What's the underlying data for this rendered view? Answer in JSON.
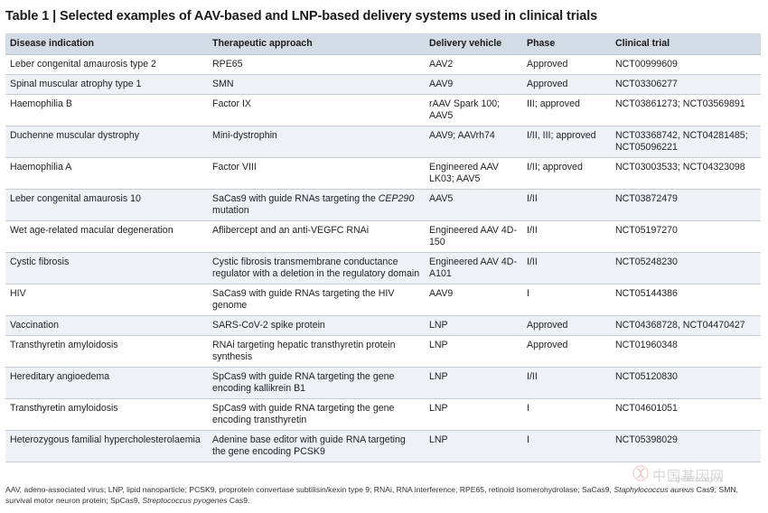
{
  "title": "Table 1 | Selected examples of AAV-based and LNP-based delivery systems used in clinical trials",
  "headers": [
    "Disease indication",
    "Therapeutic approach",
    "Delivery vehicle",
    "Phase",
    "Clinical trial"
  ],
  "rows": [
    {
      "disease": "Leber congenital amaurosis type 2",
      "approach": "RPE65",
      "vehicle": "AAV2",
      "phase": "Approved",
      "trial": "NCT00999609"
    },
    {
      "disease": "Spinal muscular atrophy type 1",
      "approach": "SMN",
      "vehicle": "AAV9",
      "phase": "Approved",
      "trial": "NCT03306277"
    },
    {
      "disease": "Haemophilia B",
      "approach": "Factor IX",
      "vehicle": "rAAV Spark 100; AAV5",
      "phase": "III; approved",
      "trial": "NCT03861273; NCT03569891"
    },
    {
      "disease": "Duchenne muscular dystrophy",
      "approach": "Mini-dystrophin",
      "vehicle": "AAV9; AAVrh74",
      "phase": "I/II, III; approved",
      "trial": "NCT03368742, NCT04281485; NCT05096221"
    },
    {
      "disease": "Haemophilia A",
      "approach": "Factor VIII",
      "vehicle": "Engineered AAV LK03; AAV5",
      "phase": "I/II; approved",
      "trial": "NCT03003533; NCT04323098"
    },
    {
      "disease": "Leber congenital amaurosis 10",
      "approach": "SaCas9 with guide RNAs targeting the",
      "approach_italic": "CEP290",
      "approach_suffix": " mutation",
      "vehicle": "AAV5",
      "phase": "I/II",
      "trial": "NCT03872479"
    },
    {
      "disease": "Wet age-related macular degeneration",
      "approach": "Aflibercept and an anti-VEGFC RNAi",
      "vehicle": "Engineered AAV 4D-150",
      "phase": "I/II",
      "trial": "NCT05197270"
    },
    {
      "disease": "Cystic fibrosis",
      "approach": "Cystic fibrosis transmembrane conductance regulator with a deletion in the regulatory domain",
      "vehicle": "Engineered AAV 4D-A101",
      "phase": "I/II",
      "trial": "NCT05248230"
    },
    {
      "disease": "HIV",
      "approach": "SaCas9 with guide RNAs targeting the HIV genome",
      "vehicle": "AAV9",
      "phase": "I",
      "trial": "NCT05144386"
    },
    {
      "disease": "Vaccination",
      "approach": "SARS-CoV-2 spike protein",
      "vehicle": "LNP",
      "phase": "Approved",
      "trial": "NCT04368728, NCT04470427"
    },
    {
      "disease": "Transthyretin amyloidosis",
      "approach": "RNAi targeting hepatic transthyretin protein synthesis",
      "vehicle": "LNP",
      "phase": "Approved",
      "trial": "NCT01960348"
    },
    {
      "disease": "Hereditary angioedema",
      "approach": "SpCas9 with guide RNA targeting the gene encoding kallikrein B1",
      "vehicle": "LNP",
      "phase": "I/II",
      "trial": "NCT05120830"
    },
    {
      "disease": "Transthyretin amyloidosis",
      "approach": "SpCas9 with guide RNA targeting the gene encoding transthyretin",
      "vehicle": "LNP",
      "phase": "I",
      "trial": "NCT04601051"
    },
    {
      "disease": "Heterozygous familial hypercholesterolaemia",
      "approach": "Adenine base editor with guide RNA targeting the gene encoding PCSK9",
      "vehicle": "LNP",
      "phase": "I",
      "trial": "NCT05398029"
    }
  ],
  "footnote": {
    "part1": "AAV, adeno-associated virus; LNP, lipid nanoparticle; PCSK9, proprotein convertase subtilisin/kexin type 9; RNAi, RNA interference; RPE65, retinoid isomerohydrolase; SaCas9, ",
    "italic1": "Staphylococcus aureus",
    "part2": " Cas9; SMN, survival motor neuron protein; SpCas9, ",
    "italic2": "Streptococcus pyogenes",
    "part3": " Cas9."
  },
  "watermark": {
    "text": "中国基因网",
    "url": "genecn.org.cn"
  },
  "colors": {
    "header_bg": "#d3dbe6",
    "stripe_bg": "#eef1f6"
  }
}
